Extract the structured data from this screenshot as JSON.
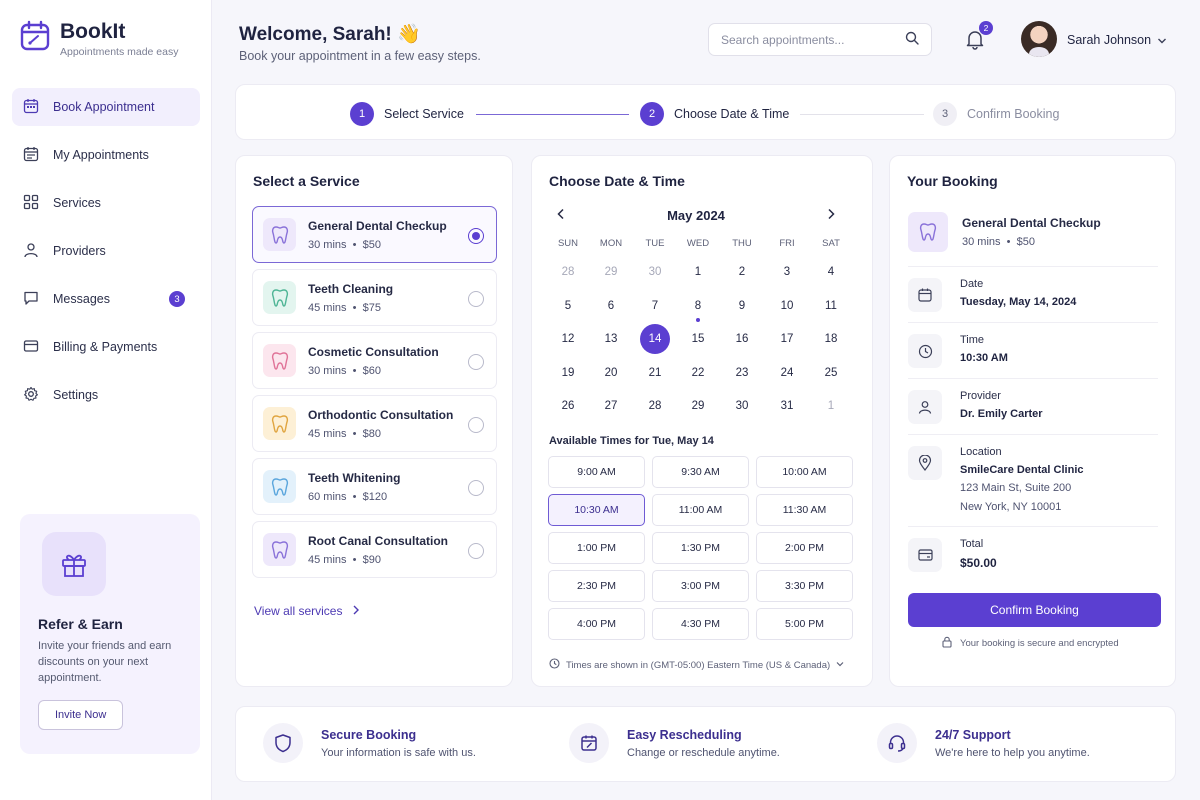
{
  "app": {
    "name": "BookIt",
    "tagline": "Appointments made easy"
  },
  "colors": {
    "accent": "#5b3fd1",
    "accent_soft": "#f2effd"
  },
  "sidebar": {
    "items": [
      {
        "label": "Book Appointment",
        "icon": "calendar-icon",
        "active": true
      },
      {
        "label": "My Appointments",
        "icon": "calendar-list-icon"
      },
      {
        "label": "Services",
        "icon": "grid-icon"
      },
      {
        "label": "Providers",
        "icon": "user-icon"
      },
      {
        "label": "Messages",
        "icon": "chat-icon",
        "badge": "3"
      },
      {
        "label": "Billing & Payments",
        "icon": "card-icon"
      },
      {
        "label": "Settings",
        "icon": "gear-icon"
      }
    ],
    "refer": {
      "title": "Refer & Earn",
      "text": "Invite your friends and earn discounts on your next appointment.",
      "button": "Invite Now"
    }
  },
  "header": {
    "title": "Welcome, Sarah! 👋",
    "subtitle": "Book your appointment in a few easy steps.",
    "search_placeholder": "Search appointments...",
    "notification_count": "2",
    "user_name": "Sarah Johnson"
  },
  "steps": [
    {
      "num": "1",
      "label": "Select Service",
      "state": "done"
    },
    {
      "num": "2",
      "label": "Choose Date & Time",
      "state": "current"
    },
    {
      "num": "3",
      "label": "Confirm Booking",
      "state": "upcoming"
    }
  ],
  "services": {
    "title": "Select a Service",
    "items": [
      {
        "name": "General Dental Checkup",
        "duration": "30 mins",
        "price": "$50",
        "selected": true,
        "color": "#eee8fb",
        "icon_color": "#8a72d9"
      },
      {
        "name": "Teeth Cleaning",
        "duration": "45 mins",
        "price": "$75",
        "color": "#e3f5ef",
        "icon_color": "#4fb596"
      },
      {
        "name": "Cosmetic Consultation",
        "duration": "30 mins",
        "price": "$60",
        "color": "#fce6ee",
        "icon_color": "#e07398"
      },
      {
        "name": "Orthodontic Consultation",
        "duration": "45 mins",
        "price": "$80",
        "color": "#fdf0d6",
        "icon_color": "#e0a540"
      },
      {
        "name": "Teeth Whitening",
        "duration": "60 mins",
        "price": "$120",
        "color": "#e3f1fb",
        "icon_color": "#5ba6dd"
      },
      {
        "name": "Root Canal Consultation",
        "duration": "45 mins",
        "price": "$90",
        "color": "#eee8fb",
        "icon_color": "#8a72d9"
      }
    ],
    "view_all": "View all services"
  },
  "calendar": {
    "title": "Choose Date & Time",
    "month": "May 2024",
    "weekdays": [
      "SUN",
      "MON",
      "TUE",
      "WED",
      "THU",
      "FRI",
      "SAT"
    ],
    "days": [
      [
        "28",
        "29",
        "30",
        "1",
        "2",
        "3",
        "4"
      ],
      [
        "5",
        "6",
        "7",
        "8",
        "9",
        "10",
        "11"
      ],
      [
        "12",
        "13",
        "14",
        "15",
        "16",
        "17",
        "18"
      ],
      [
        "19",
        "20",
        "21",
        "22",
        "23",
        "24",
        "25"
      ],
      [
        "26",
        "27",
        "28",
        "29",
        "30",
        "31",
        "1"
      ]
    ],
    "muted": [
      [
        0,
        0
      ],
      [
        0,
        1
      ],
      [
        0,
        2
      ],
      [
        4,
        6
      ]
    ],
    "selected": [
      2,
      2
    ],
    "marked": [
      [
        1,
        3
      ]
    ],
    "available_title": "Available Times for Tue, May 14",
    "slots": [
      "9:00 AM",
      "9:30 AM",
      "10:00 AM",
      "10:30 AM",
      "11:00 AM",
      "11:30 AM",
      "1:00 PM",
      "1:30 PM",
      "2:00 PM",
      "2:30 PM",
      "3:00 PM",
      "3:30 PM",
      "4:00 PM",
      "4:30 PM",
      "5:00 PM"
    ],
    "selected_slot": "10:30 AM",
    "timezone": "Times are shown in (GMT-05:00) Eastern Time (US & Canada)"
  },
  "booking": {
    "title": "Your Booking",
    "service": {
      "name": "General Dental Checkup",
      "duration": "30 mins",
      "price": "$50"
    },
    "date": {
      "label": "Date",
      "value": "Tuesday, May 14, 2024"
    },
    "time": {
      "label": "Time",
      "value": "10:30 AM"
    },
    "provider": {
      "label": "Provider",
      "value": "Dr. Emily Carter"
    },
    "location": {
      "label": "Location",
      "value": "SmileCare Dental Clinic",
      "line1": "123 Main St, Suite 200",
      "line2": "New York, NY 10001"
    },
    "total": {
      "label": "Total",
      "value": "$50.00"
    },
    "confirm": "Confirm Booking",
    "secure_note": "Your booking is secure and encrypted"
  },
  "features": [
    {
      "title": "Secure Booking",
      "desc": "Your information is safe with us.",
      "icon": "shield-icon"
    },
    {
      "title": "Easy Rescheduling",
      "desc": "Change or reschedule anytime.",
      "icon": "calendar-edit-icon"
    },
    {
      "title": "24/7 Support",
      "desc": "We're here to help you anytime.",
      "icon": "headset-icon"
    }
  ]
}
